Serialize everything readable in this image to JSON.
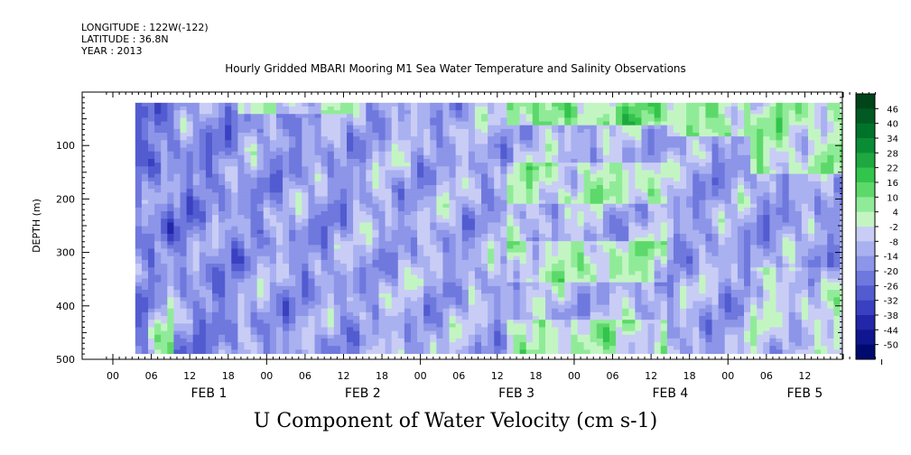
{
  "header": {
    "longitude": "LONGITUDE : 122W(-122)",
    "latitude": "LATITUDE : 36.8N",
    "year": "YEAR : 2013"
  },
  "chart_data": {
    "type": "heatmap",
    "title": "Hourly Gridded MBARI Mooring M1 Sea Water Temperature and Salinity Observations",
    "xlabel": "U Component of Water Velocity (cm s-1)",
    "ylabel": "DEPTH (m)",
    "x_axis": {
      "start_hour": 0,
      "end_hour": 120,
      "hour_ticks": [
        "00",
        "06",
        "12",
        "18",
        "00",
        "06",
        "12",
        "18",
        "00",
        "06",
        "12",
        "18",
        "00",
        "06",
        "12",
        "18",
        "00",
        "06",
        "12"
      ],
      "hour_tick_values": [
        0,
        6,
        12,
        18,
        24,
        30,
        36,
        42,
        48,
        54,
        60,
        66,
        72,
        78,
        84,
        90,
        96,
        102,
        108
      ],
      "day_labels": [
        "FEB  1",
        "FEB  2",
        "FEB  3",
        "FEB  4",
        "FEB  5"
      ],
      "day_label_hours": [
        15,
        39,
        63,
        87,
        108
      ]
    },
    "y_axis": {
      "ylim": [
        500,
        0
      ],
      "tick_values": [
        100,
        200,
        300,
        400,
        500
      ],
      "tick_labels": [
        "100",
        "200",
        "300",
        "400",
        "500"
      ],
      "data_depth_range": [
        20,
        485
      ]
    },
    "colorbar": {
      "levels": [
        "46",
        "40",
        "34",
        "28",
        "22",
        "16",
        "10",
        "4",
        "-2",
        "-8",
        "-14",
        "-20",
        "-26",
        "-32",
        "-38",
        "-44",
        "-50"
      ],
      "colors_top_to_bottom": [
        "#00441a",
        "#005a22",
        "#00732b",
        "#0a8c35",
        "#1ea83f",
        "#33c44c",
        "#5cd96a",
        "#90eb98",
        "#c3f5c3",
        "#c9cdf5",
        "#aab1f0",
        "#8c95e8",
        "#6f78dd",
        "#525cd0",
        "#3a41c0",
        "#2326a8",
        "#101690",
        "#000a6e"
      ],
      "band_colors_low_to_high": [
        "#000a6e",
        "#101690",
        "#2326a8",
        "#3a41c0",
        "#525cd0",
        "#6f78dd",
        "#8c95e8",
        "#aab1f0",
        "#c9cdf5",
        "#c3f5c3",
        "#90eb98",
        "#5cd96a",
        "#33c44c",
        "#1ea83f",
        "#0a8c35",
        "#00732b",
        "#005a22",
        "#00441a"
      ]
    },
    "grid": false,
    "legend": "right colorbar"
  }
}
